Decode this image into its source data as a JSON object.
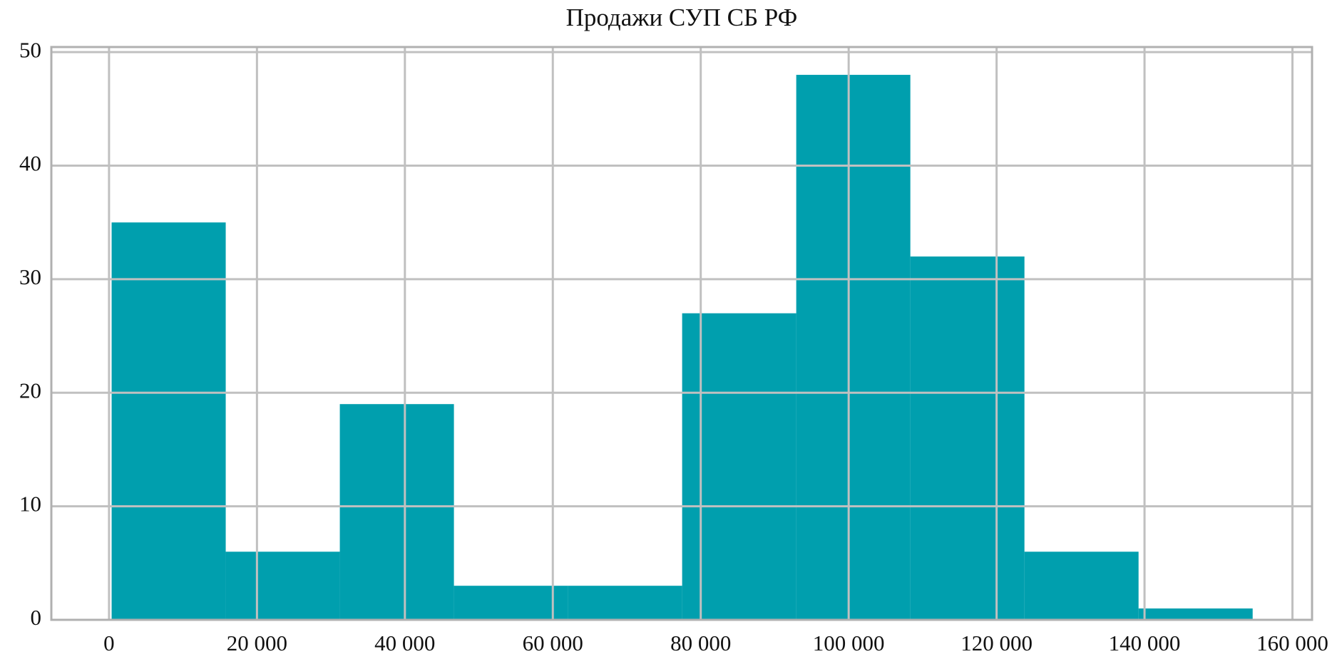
{
  "chart_data": {
    "type": "histogram",
    "title": "Продажи СУП СБ РФ",
    "bins": [
      350,
      15777,
      31204,
      46631,
      62058,
      77485,
      92912,
      108339,
      123766,
      139193,
      154620
    ],
    "values": [
      35,
      6,
      19,
      3,
      3,
      27,
      48,
      32,
      6,
      1
    ],
    "color": "#009fae",
    "xlim": [
      -7800,
      162650
    ],
    "ylim": [
      0,
      50.45
    ],
    "xticks": [
      0,
      {
        "value": 20000,
        "label": "20 000"
      },
      {
        "value": 40000,
        "label": "40 000"
      },
      {
        "value": 60000,
        "label": "60 000"
      },
      {
        "value": 80000,
        "label": "80 000"
      },
      {
        "value": 100000,
        "label": "100 000"
      },
      {
        "value": 120000,
        "label": "120 000"
      },
      {
        "value": 140000,
        "label": "140 000"
      },
      {
        "value": 160000,
        "label": "160 000"
      }
    ],
    "yticks": [
      0,
      10,
      20,
      30,
      40,
      50
    ],
    "grid": true
  }
}
